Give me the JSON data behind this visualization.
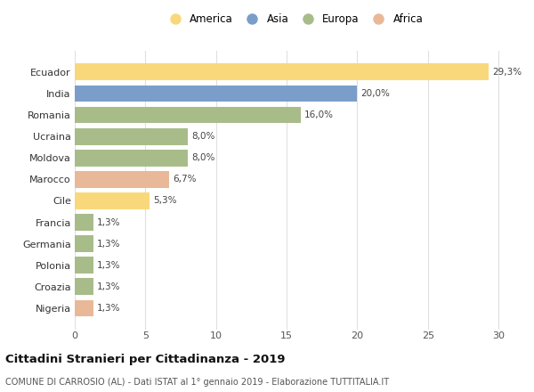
{
  "categories": [
    "Ecuador",
    "India",
    "Romania",
    "Ucraina",
    "Moldova",
    "Marocco",
    "Cile",
    "Francia",
    "Germania",
    "Polonia",
    "Croazia",
    "Nigeria"
  ],
  "values": [
    29.3,
    20.0,
    16.0,
    8.0,
    8.0,
    6.7,
    5.3,
    1.3,
    1.3,
    1.3,
    1.3,
    1.3
  ],
  "labels": [
    "29,3%",
    "20,0%",
    "16,0%",
    "8,0%",
    "8,0%",
    "6,7%",
    "5,3%",
    "1,3%",
    "1,3%",
    "1,3%",
    "1,3%",
    "1,3%"
  ],
  "colors": [
    "#F9D87C",
    "#7A9EC9",
    "#A8BC8A",
    "#A8BC8A",
    "#A8BC8A",
    "#E8B898",
    "#F9D87C",
    "#A8BC8A",
    "#A8BC8A",
    "#A8BC8A",
    "#A8BC8A",
    "#E8B898"
  ],
  "legend": [
    {
      "label": "America",
      "color": "#F9D87C"
    },
    {
      "label": "Asia",
      "color": "#7A9EC9"
    },
    {
      "label": "Europa",
      "color": "#A8BC8A"
    },
    {
      "label": "Africa",
      "color": "#E8B898"
    }
  ],
  "title": "Cittadini Stranieri per Cittadinanza - 2019",
  "subtitle": "COMUNE DI CARROSIO (AL) - Dati ISTAT al 1° gennaio 2019 - Elaborazione TUTTITALIA.IT",
  "xlim": [
    0,
    31
  ],
  "xticks": [
    0,
    5,
    10,
    15,
    20,
    25,
    30
  ],
  "bg_color": "#ffffff",
  "grid_color": "#e0e0e0"
}
